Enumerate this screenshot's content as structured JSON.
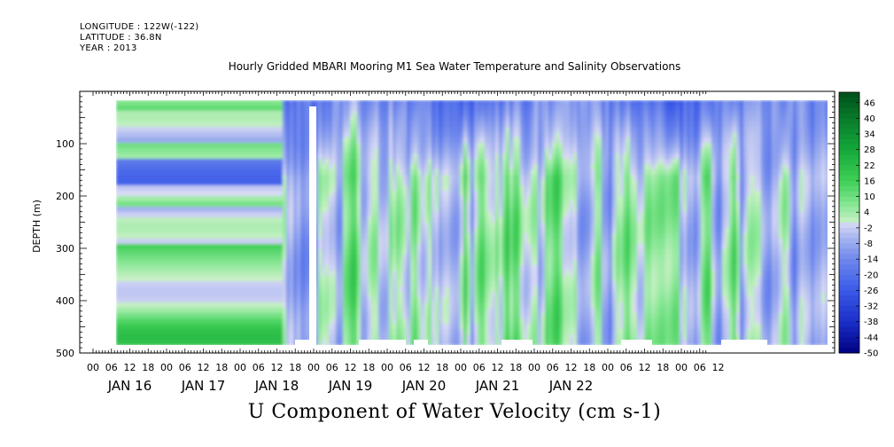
{
  "header": {
    "longitude": "LONGITUDE : 122W(-122)",
    "latitude": "LATITUDE : 36.8N",
    "year": "YEAR : 2013"
  },
  "chart_data": {
    "type": "heatmap",
    "title": "Hourly Gridded MBARI Mooring M1 Sea Water Temperature and Salinity Observations",
    "xlabel": "U Component of Water Velocity (cm s-1)",
    "ylabel": "DEPTH (m)",
    "ylim": [
      500,
      0
    ],
    "y_ticks": [
      100,
      200,
      300,
      400,
      500
    ],
    "x_hour_ticks": [
      "00",
      "06",
      "12",
      "18",
      "00",
      "06",
      "12",
      "18",
      "00",
      "06",
      "12",
      "18",
      "00",
      "06",
      "12",
      "18",
      "00",
      "06",
      "12",
      "18",
      "00",
      "06",
      "12",
      "18",
      "00",
      "06",
      "12",
      "18",
      "00",
      "06",
      "12",
      "18",
      "00",
      "06",
      "12"
    ],
    "x_day_labels": [
      "JAN 16",
      "JAN 17",
      "JAN 18",
      "JAN 19",
      "JAN 20",
      "JAN 21",
      "JAN 22"
    ],
    "colorbar_labels": [
      "46",
      "40",
      "34",
      "28",
      "22",
      "16",
      "10",
      "4",
      "-2",
      "-8",
      "-14",
      "-20",
      "-26",
      "-32",
      "-38",
      "-44",
      "-50"
    ],
    "colorbar_range": [
      -50,
      50
    ],
    "color_low": "#000080",
    "color_mid": "#d8daf4",
    "color_high": "#004d1a"
  }
}
